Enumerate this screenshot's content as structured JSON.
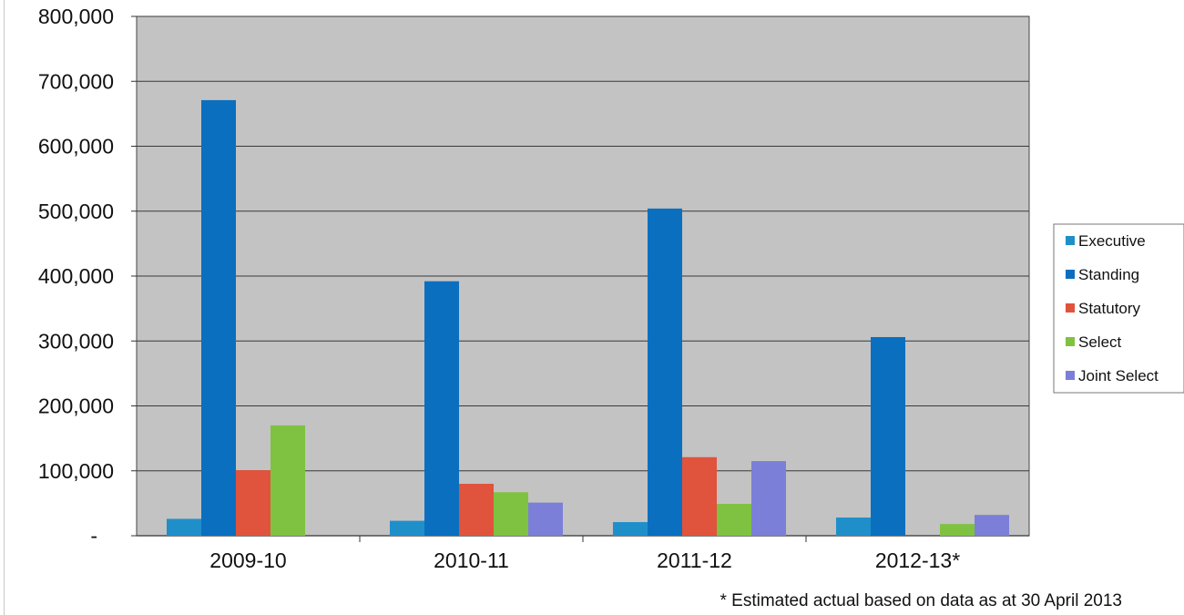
{
  "chart_data": {
    "type": "bar",
    "categories": [
      "2009-10",
      "2010-11",
      "2011-12",
      "2012-13*"
    ],
    "series": [
      {
        "name": "Executive",
        "color": "#1f8fca",
        "values": [
          26000,
          23000,
          21000,
          28000
        ]
      },
      {
        "name": "Standing",
        "color": "#0b6fc0",
        "values": [
          671000,
          392000,
          504000,
          306000
        ]
      },
      {
        "name": "Statutory",
        "color": "#e0533d",
        "values": [
          101000,
          80000,
          121000,
          0
        ]
      },
      {
        "name": "Select",
        "color": "#7fc241",
        "values": [
          170000,
          67000,
          49000,
          18000
        ]
      },
      {
        "name": "Joint Select",
        "color": "#7b7fd8",
        "values": [
          0,
          51000,
          115000,
          32000
        ]
      }
    ],
    "ylim": [
      0,
      800000
    ],
    "yticks": [
      {
        "value": 0,
        "label": "-"
      },
      {
        "value": 100000,
        "label": "100,000"
      },
      {
        "value": 200000,
        "label": "200,000"
      },
      {
        "value": 300000,
        "label": "300,000"
      },
      {
        "value": 400000,
        "label": "400,000"
      },
      {
        "value": 500000,
        "label": "500,000"
      },
      {
        "value": 600000,
        "label": "600,000"
      },
      {
        "value": 700000,
        "label": "700,000"
      },
      {
        "value": 800000,
        "label": "800,000"
      }
    ],
    "grid": true,
    "legend_position": "right",
    "plot_background": "#c3c3c3",
    "footnote": "* Estimated actual based on data as at 30 April 2013"
  }
}
